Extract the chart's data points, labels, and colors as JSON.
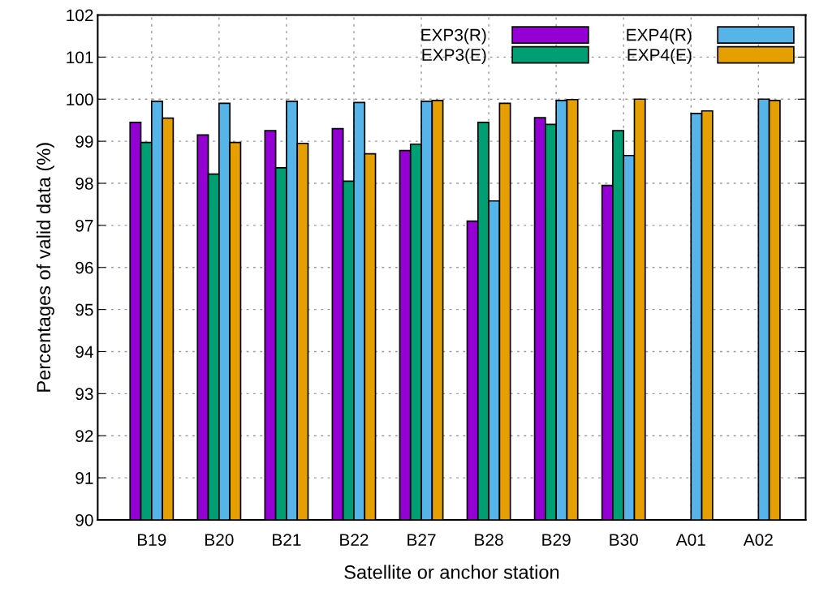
{
  "chart_data": {
    "type": "bar",
    "xlabel": "Satellite or anchor station",
    "ylabel": "Percentages of valid data (%)",
    "categories": [
      "B19",
      "B20",
      "B21",
      "B22",
      "B27",
      "B28",
      "B29",
      "B30",
      "A01",
      "A02"
    ],
    "series": [
      {
        "name": "EXP3(R)",
        "color": "#9400d3",
        "values": [
          99.45,
          99.15,
          99.25,
          99.3,
          98.78,
          97.1,
          99.56,
          97.95,
          null,
          null
        ]
      },
      {
        "name": "EXP3(E)",
        "color": "#009e73",
        "values": [
          98.97,
          98.22,
          98.37,
          98.05,
          98.93,
          99.45,
          99.4,
          99.25,
          null,
          null
        ]
      },
      {
        "name": "EXP4(R)",
        "color": "#56b4e9",
        "values": [
          99.95,
          99.9,
          99.95,
          99.92,
          99.95,
          97.58,
          99.97,
          98.66,
          99.66,
          100.0
        ]
      },
      {
        "name": "EXP4(E)",
        "color": "#e69f00",
        "values": [
          99.55,
          98.97,
          98.95,
          98.7,
          99.97,
          99.9,
          99.99,
          100.0,
          99.72,
          99.97
        ]
      }
    ],
    "ylim": [
      90,
      102
    ],
    "yticks": [
      90,
      91,
      92,
      93,
      94,
      95,
      96,
      97,
      98,
      99,
      100,
      101,
      102
    ],
    "grid": true,
    "legend": "top right"
  }
}
